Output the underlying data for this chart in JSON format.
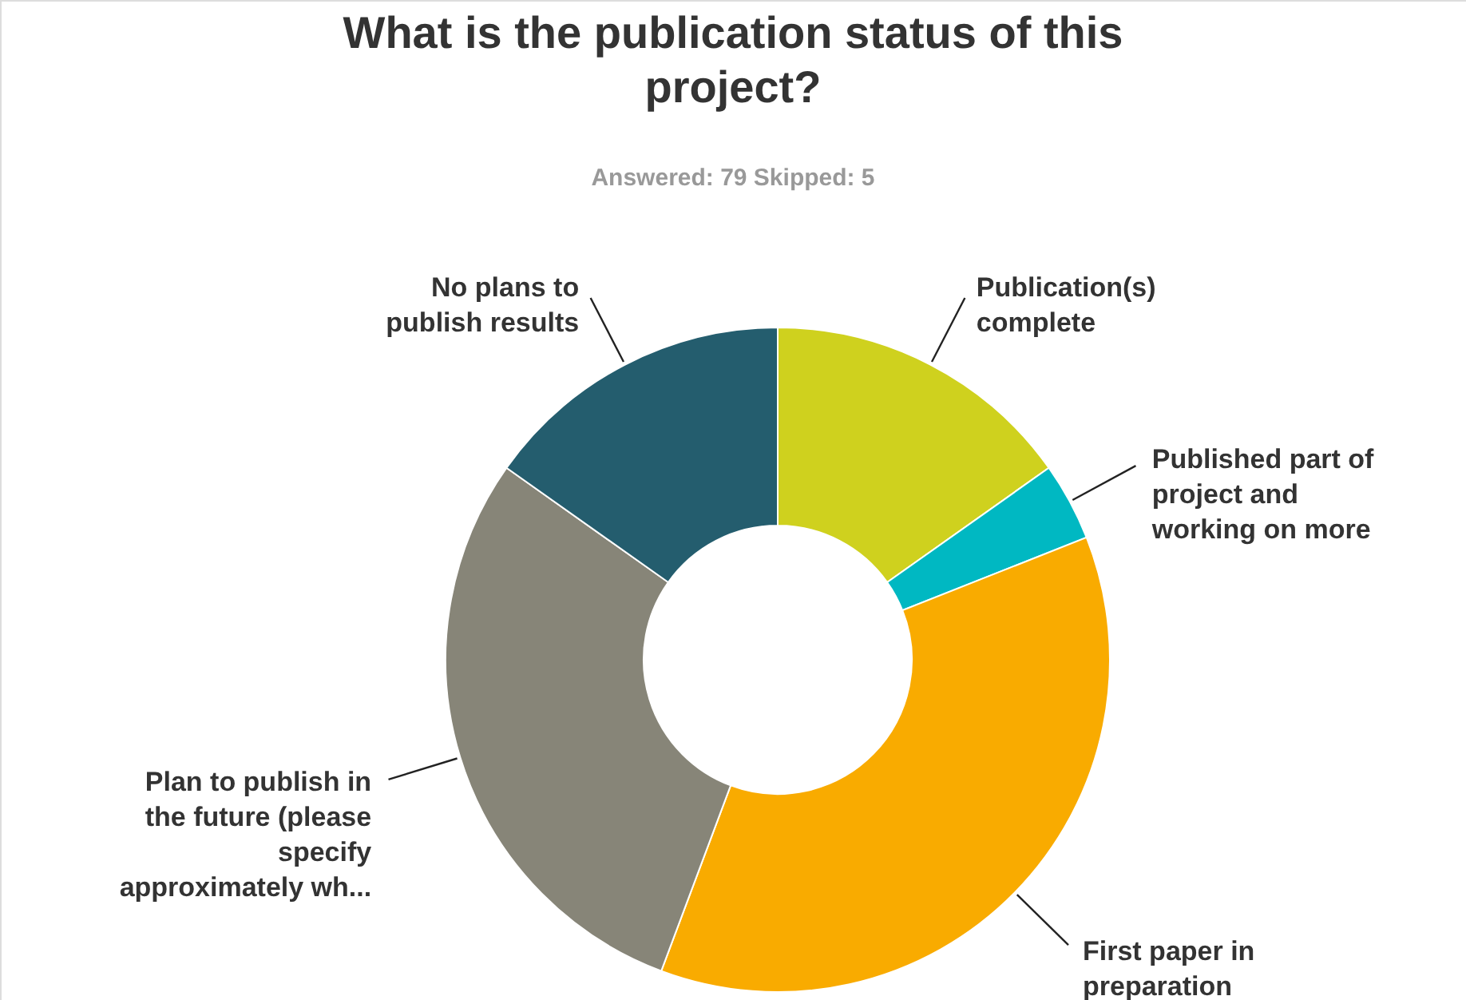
{
  "chart_data": {
    "type": "donut",
    "title": "What is the publication status of this project?",
    "subtitle": "Answered: 79    Skipped: 5",
    "categories": [
      "Publication(s) complete",
      "Published part of project and working on more",
      "First paper in preparation",
      "Plan to publish in the future (please specify approximately wh...",
      "No plans to publish results"
    ],
    "values": [
      15.2,
      3.8,
      36.7,
      29.1,
      15.2
    ],
    "colors": [
      "#cfd11e",
      "#00b8c2",
      "#f9ab00",
      "#878578",
      "#245d6e"
    ]
  }
}
